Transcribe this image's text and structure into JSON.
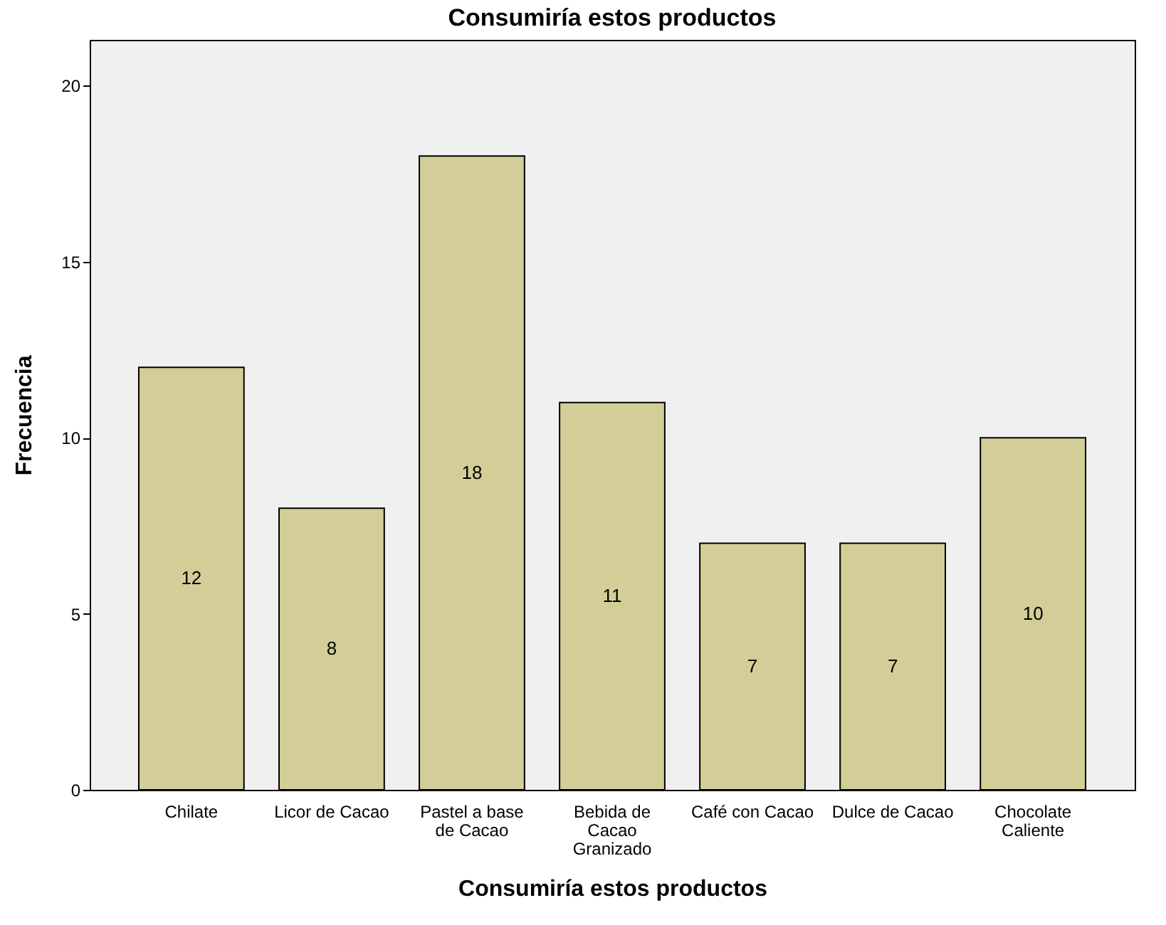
{
  "chart_data": {
    "type": "bar",
    "title": "Consumiría estos productos",
    "xlabel": "Consumiría estos productos",
    "ylabel": "Frecuencia",
    "categories": [
      "Chilate",
      "Licor de Cacao",
      "Pastel a base de Cacao",
      "Bebida de Cacao Granizado",
      "Café con Cacao",
      "Dulce de Cacao",
      "Chocolate Caliente"
    ],
    "values": [
      12,
      8,
      18,
      11,
      7,
      7,
      10
    ],
    "color": "#d3ce97",
    "ylim": [
      0,
      21.3
    ],
    "yticks": [
      0,
      5,
      10,
      15,
      20
    ],
    "grid": false,
    "data_labels": true
  }
}
